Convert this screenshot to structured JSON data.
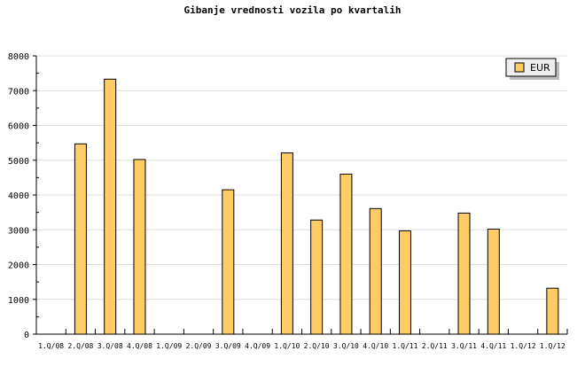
{
  "chart_data": {
    "type": "bar",
    "title": "Gibanje vrednosti vozila po kvartalih",
    "xlabel": "",
    "ylabel": "",
    "categories": [
      "1.Q/08",
      "2.Q/08",
      "3.Q/08",
      "4.Q/08",
      "1.Q/09",
      "2.Q/09",
      "3.Q/09",
      "4.Q/09",
      "1.Q/10",
      "2.Q/10",
      "3.Q/10",
      "4.Q/10",
      "1.Q/11",
      "2.Q/11",
      "3.Q/11",
      "4.Q/11",
      "1.Q/12",
      "1.Q/12"
    ],
    "series": [
      {
        "name": "EUR",
        "values": [
          0,
          5470,
          7330,
          5020,
          0,
          0,
          4150,
          0,
          5210,
          3280,
          4600,
          3610,
          2970,
          0,
          3480,
          3020,
          0,
          1320
        ]
      }
    ],
    "ylim": [
      0,
      8000
    ],
    "yticks": [
      0,
      1000,
      2000,
      3000,
      4000,
      5000,
      6000,
      7000,
      8000
    ],
    "grid": true,
    "legend": "top-right",
    "colors": {
      "bar": "#ffcc66",
      "bar_stroke": "#000000",
      "grid": "#dddddd",
      "legend_bg": "#eeeeee",
      "legend_shadow": "#bbbbbb"
    }
  }
}
